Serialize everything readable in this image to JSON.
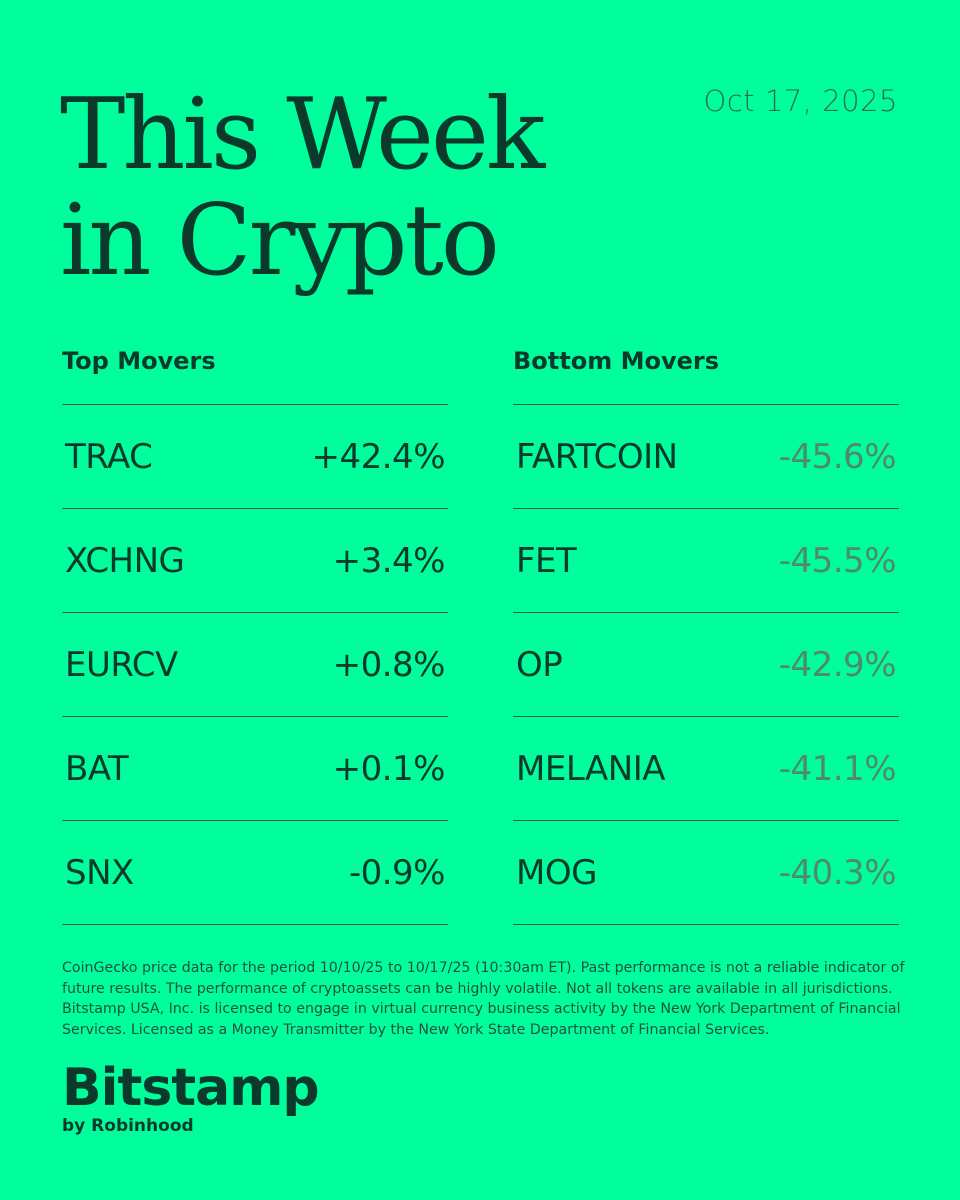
{
  "header": {
    "title_line1": "This Week",
    "title_line2": "in Crypto",
    "date": "Oct 17, 2025"
  },
  "top_movers": {
    "heading": "Top Movers",
    "items": [
      {
        "symbol": "TRAC",
        "change": "+42.4%"
      },
      {
        "symbol": "XCHNG",
        "change": "+3.4%"
      },
      {
        "symbol": "EURCV",
        "change": "+0.8%"
      },
      {
        "symbol": "BAT",
        "change": "+0.1%"
      },
      {
        "symbol": "SNX",
        "change": "-0.9%"
      }
    ]
  },
  "bottom_movers": {
    "heading": "Bottom Movers",
    "items": [
      {
        "symbol": "FARTCOIN",
        "change": "-45.6%"
      },
      {
        "symbol": "FET",
        "change": "-45.5%"
      },
      {
        "symbol": "OP",
        "change": "-42.9%"
      },
      {
        "symbol": "MELANIA",
        "change": "-41.1%"
      },
      {
        "symbol": "MOG",
        "change": "-40.3%"
      }
    ]
  },
  "disclaimer": "CoinGecko price data for the period 10/10/25 to 10/17/25 (10:30am ET). Past performance is not a reliable indicator of future results. The performance of cryptoassets can be highly volatile. Not all tokens are available in all jurisdictions. Bitstamp USA, Inc. is licensed to engage in virtual currency business activity by the New York Department of Financial Services. Licensed as a Money Transmitter by the New York State Department of Financial Services.",
  "brand": {
    "name": "Bitstamp",
    "sub": "by Robinhood"
  },
  "colors": {
    "background": "#00ff9c",
    "text": "#0b3a2c",
    "negative_muted": "#4d8a70"
  }
}
